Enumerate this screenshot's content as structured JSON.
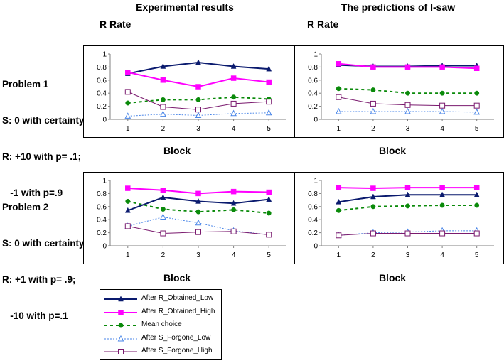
{
  "columns": {
    "left_title": "Experimental results",
    "right_title": "The predictions of I-saw"
  },
  "y_axis_label": "R Rate",
  "x_axis_label": "Block",
  "problems": [
    {
      "title": "Problem 1",
      "lines": [
        "S: 0 with certainty",
        "R: +10 with p= .1;",
        "   -1 with p=.9"
      ]
    },
    {
      "title": "Problem 2",
      "lines": [
        "S: 0 with certainty",
        "R: +1 with p= .9;",
        "   -10 with p=.1"
      ]
    }
  ],
  "series_styles": [
    {
      "name": "After R_Obtained_Low",
      "color": "#0a1a6e",
      "marker": "triangle-filled",
      "dash": ""
    },
    {
      "name": "After R_Obtained_High",
      "color": "#ff00ff",
      "marker": "square-filled",
      "dash": ""
    },
    {
      "name": "Mean choice",
      "color": "#0a8a0a",
      "marker": "circle-filled",
      "dash": "4,4"
    },
    {
      "name": "After S_Forgone_Low",
      "color": "#4a86e8",
      "marker": "triangle-open",
      "dash": "2,2"
    },
    {
      "name": "After S_Forgone_High",
      "color": "#7a1a6e",
      "marker": "square-open",
      "dash": ""
    }
  ],
  "chart_data": [
    {
      "id": "p1-exp",
      "type": "line",
      "x": [
        1,
        2,
        3,
        4,
        5
      ],
      "ylim": [
        0,
        1
      ],
      "yticks": [
        "0",
        "0.2",
        "0.4",
        "0.6",
        "0.8",
        "1"
      ],
      "xticks": [
        "1",
        "2",
        "3",
        "4",
        "5"
      ],
      "series": [
        {
          "name": "After R_Obtained_Low",
          "values": [
            0.7,
            0.81,
            0.87,
            0.81,
            0.77
          ]
        },
        {
          "name": "After R_Obtained_High",
          "values": [
            0.72,
            0.6,
            0.5,
            0.63,
            0.57
          ]
        },
        {
          "name": "Mean choice",
          "values": [
            0.25,
            0.3,
            0.3,
            0.34,
            0.31
          ]
        },
        {
          "name": "After S_Forgone_Low",
          "values": [
            0.05,
            0.08,
            0.06,
            0.09,
            0.1
          ]
        },
        {
          "name": "After S_Forgone_High",
          "values": [
            0.42,
            0.19,
            0.15,
            0.24,
            0.27
          ]
        }
      ]
    },
    {
      "id": "p1-isaw",
      "type": "line",
      "x": [
        1,
        2,
        3,
        4,
        5
      ],
      "ylim": [
        0,
        1
      ],
      "yticks": [
        "0",
        "0.2",
        "0.4",
        "0.6",
        "0.8",
        "1"
      ],
      "xticks": [
        "1",
        "2",
        "3",
        "4",
        "5"
      ],
      "series": [
        {
          "name": "After R_Obtained_Low",
          "values": [
            0.83,
            0.81,
            0.81,
            0.82,
            0.82
          ]
        },
        {
          "name": "After R_Obtained_High",
          "values": [
            0.85,
            0.8,
            0.8,
            0.8,
            0.78
          ]
        },
        {
          "name": "Mean choice",
          "values": [
            0.47,
            0.45,
            0.4,
            0.4,
            0.4
          ]
        },
        {
          "name": "After S_Forgone_Low",
          "values": [
            0.12,
            0.12,
            0.12,
            0.12,
            0.11
          ]
        },
        {
          "name": "After S_Forgone_High",
          "values": [
            0.34,
            0.24,
            0.22,
            0.21,
            0.21
          ]
        }
      ]
    },
    {
      "id": "p2-exp",
      "type": "line",
      "x": [
        1,
        2,
        3,
        4,
        5
      ],
      "ylim": [
        0,
        1
      ],
      "yticks": [
        "0",
        "0.2",
        "0.4",
        "0.6",
        "0.8",
        "1"
      ],
      "xticks": [
        "1",
        "2",
        "3",
        "4",
        "5"
      ],
      "series": [
        {
          "name": "After R_Obtained_Low",
          "values": [
            0.54,
            0.74,
            0.68,
            0.65,
            0.71
          ]
        },
        {
          "name": "After R_Obtained_High",
          "values": [
            0.88,
            0.85,
            0.8,
            0.83,
            0.82
          ]
        },
        {
          "name": "Mean choice",
          "values": [
            0.68,
            0.56,
            0.52,
            0.55,
            0.5
          ]
        },
        {
          "name": "After S_Forgone_Low",
          "values": [
            0.3,
            0.44,
            0.35,
            0.23,
            0.17
          ]
        },
        {
          "name": "After S_Forgone_High",
          "values": [
            0.3,
            0.19,
            0.21,
            0.22,
            0.17
          ]
        }
      ]
    },
    {
      "id": "p2-isaw",
      "type": "line",
      "x": [
        1,
        2,
        3,
        4,
        5
      ],
      "ylim": [
        0,
        1
      ],
      "yticks": [
        "0",
        "0.2",
        "0.4",
        "0.6",
        "0.8",
        "1"
      ],
      "xticks": [
        "1",
        "2",
        "3",
        "4",
        "5"
      ],
      "series": [
        {
          "name": "After R_Obtained_Low",
          "values": [
            0.67,
            0.75,
            0.78,
            0.78,
            0.78
          ]
        },
        {
          "name": "After R_Obtained_High",
          "values": [
            0.89,
            0.88,
            0.89,
            0.89,
            0.89
          ]
        },
        {
          "name": "Mean choice",
          "values": [
            0.54,
            0.6,
            0.61,
            0.62,
            0.62
          ]
        },
        {
          "name": "After S_Forgone_Low",
          "values": [
            0.16,
            0.2,
            0.21,
            0.23,
            0.23
          ]
        },
        {
          "name": "After S_Forgone_High",
          "values": [
            0.16,
            0.19,
            0.19,
            0.19,
            0.19
          ]
        }
      ]
    }
  ]
}
